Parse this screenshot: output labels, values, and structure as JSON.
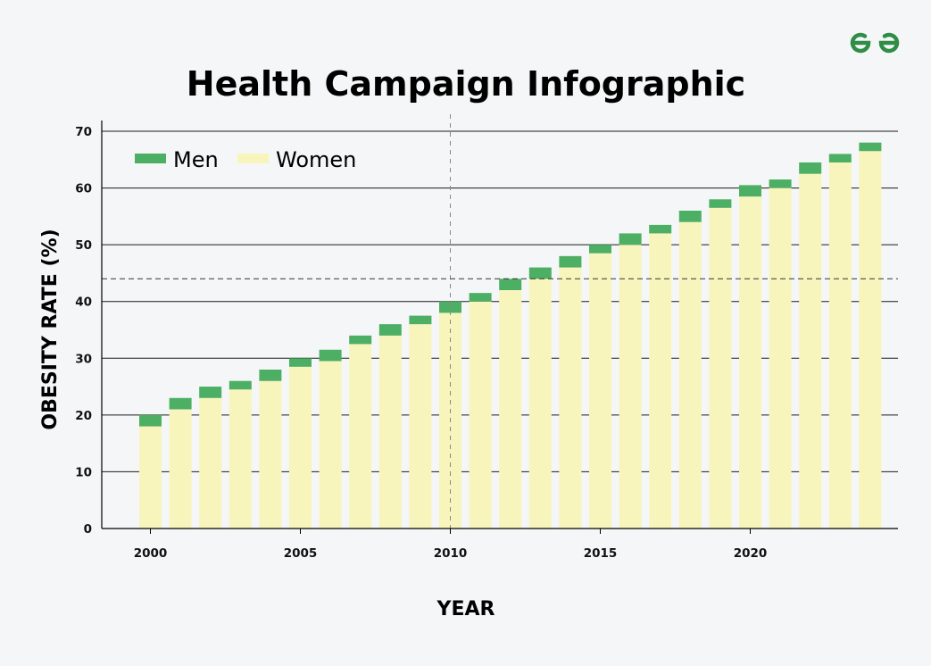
{
  "chart_data": {
    "type": "bar",
    "stacked": true,
    "title": "Health Campaign Infographic",
    "xlabel": "YEAR",
    "ylabel": "OBESITY RATE (%)",
    "ylim": [
      0,
      70
    ],
    "yticks": [
      0,
      10,
      20,
      30,
      40,
      50,
      60,
      70
    ],
    "xticks": [
      2000,
      2005,
      2010,
      2015,
      2020
    ],
    "grid": "horizontal",
    "legend_position": "top-left",
    "categories": [
      2000,
      2001,
      2002,
      2003,
      2004,
      2005,
      2006,
      2007,
      2008,
      2009,
      2010,
      2011,
      2012,
      2013,
      2014,
      2015,
      2016,
      2017,
      2018,
      2019,
      2020,
      2021,
      2022,
      2023,
      2024
    ],
    "series": [
      {
        "name": "Women",
        "color": "#f7f5bc",
        "values": [
          18,
          21,
          23,
          24.5,
          26,
          28.5,
          29.5,
          32.5,
          34,
          36,
          38,
          40,
          42,
          44,
          46,
          48.5,
          50,
          52,
          54,
          56.5,
          58.5,
          60,
          62.5,
          64.5,
          66.5
        ]
      },
      {
        "name": "Men",
        "color": "#4caf63",
        "values": [
          2,
          2,
          2,
          1.5,
          2,
          1.5,
          2,
          1.5,
          2,
          1.5,
          2,
          1.5,
          2,
          2,
          2,
          1.5,
          2,
          1.5,
          2,
          1.5,
          2,
          1.5,
          2,
          1.5,
          1.5
        ]
      }
    ],
    "reference_lines": {
      "vertical_x": 2010,
      "horizontal_y": 44
    }
  },
  "logo": {
    "name": "gfg-logo-icon",
    "color": "#2f8d46"
  }
}
